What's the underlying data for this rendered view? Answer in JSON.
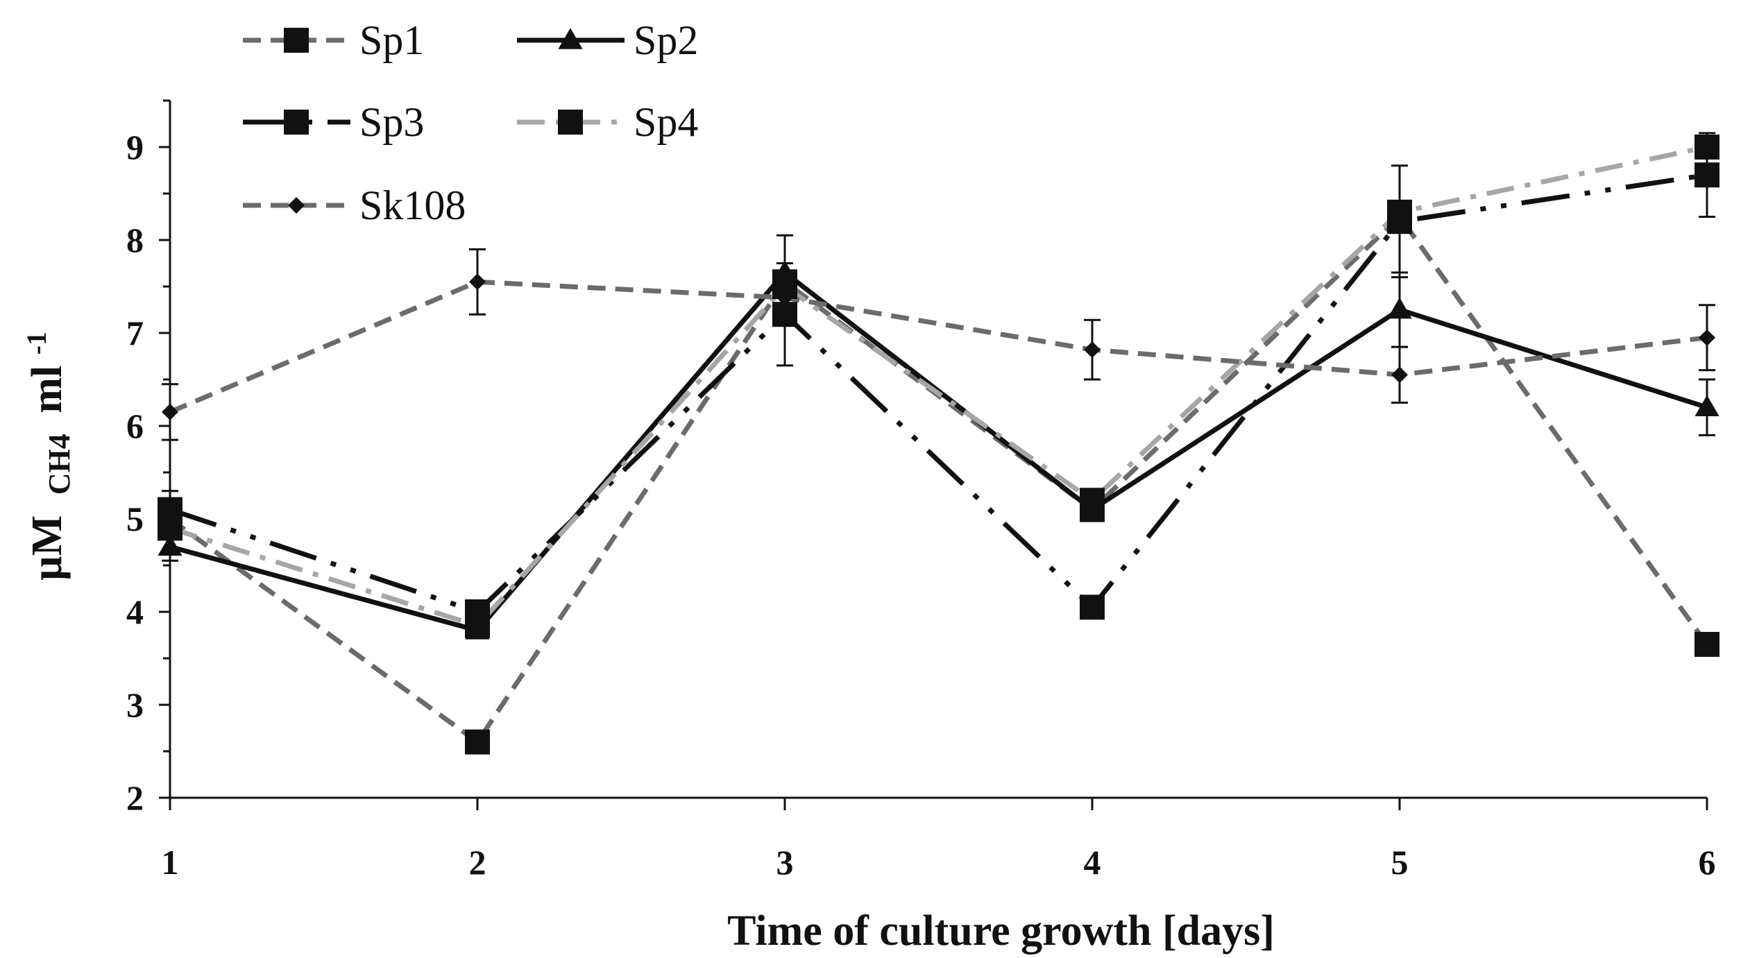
{
  "chart_data": {
    "type": "line",
    "x": [
      1,
      2,
      3,
      4,
      5,
      6
    ],
    "xlim": [
      1,
      6
    ],
    "ylim": [
      2,
      9.5
    ],
    "y_ticks": [
      2,
      3,
      4,
      5,
      6,
      7,
      8,
      9
    ],
    "x_ticks": [
      1,
      2,
      3,
      4,
      5,
      6
    ],
    "xlabel": "Time of culture growth [days]",
    "ylabel_main": "µM",
    "ylabel_sub": "CH4",
    "ylabel_unit": "ml",
    "ylabel_sup": "-1",
    "grid": false,
    "legend_position": "top-left",
    "series": [
      {
        "name": "Sp1",
        "color": "#6b6b6b",
        "dash": "dashed",
        "marker": "square",
        "values": [
          5.0,
          2.6,
          7.55,
          5.1,
          8.25,
          3.65
        ],
        "errors": [
          0,
          0,
          0,
          0,
          0,
          0
        ]
      },
      {
        "name": "Sp2",
        "color": "#111111",
        "dash": "solid",
        "marker": "triangle",
        "values": [
          4.7,
          3.8,
          7.65,
          5.1,
          7.25,
          6.2
        ],
        "errors": [
          0.15,
          0,
          0.4,
          0,
          0.4,
          0.3
        ]
      },
      {
        "name": "Sp3",
        "color": "#111111",
        "dash": "longdashdotdot",
        "marker": "square",
        "values": [
          5.1,
          4.0,
          7.2,
          4.05,
          8.2,
          8.7
        ],
        "errors": [
          0.2,
          0,
          0.55,
          0,
          0.6,
          0.45
        ]
      },
      {
        "name": "Sp4",
        "color": "#a6a6a6",
        "dash": "dashdot",
        "marker": "square",
        "values": [
          4.9,
          3.85,
          7.5,
          5.2,
          8.3,
          9.0
        ],
        "errors": [
          0,
          0,
          0,
          0,
          0,
          0
        ]
      },
      {
        "name": "Sk108",
        "color": "#6b6b6b",
        "dash": "dashed",
        "marker": "diamond",
        "values": [
          6.15,
          7.55,
          7.38,
          6.82,
          6.55,
          6.95
        ],
        "errors": [
          0.3,
          0.35,
          0,
          0.32,
          0.3,
          0.35
        ]
      }
    ]
  }
}
